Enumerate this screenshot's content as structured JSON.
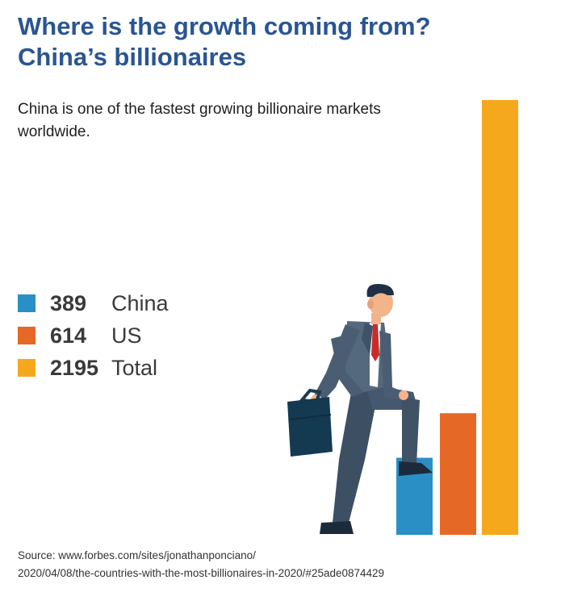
{
  "header": {
    "title_line1": "Where is the growth coming from?",
    "title_line2": "China’s billionaires"
  },
  "subtitle": "China is one of the fastest growing billionaire markets worldwide.",
  "source": {
    "line1": "Source: www.forbes.com/sites/jonathanponciano/",
    "line2": "2020/04/08/the-countries-with-the-most-billionaires-in-2020/#25ade0874429"
  },
  "chart_data": {
    "type": "bar",
    "categories": [
      "China",
      "US",
      "Total"
    ],
    "values": [
      389,
      614,
      2195
    ],
    "colors": [
      "#2a8fc4",
      "#e66826",
      "#f6a81c"
    ],
    "legend_position": "left",
    "grid": false,
    "axes_visible": false,
    "ylim": [
      0,
      2195
    ]
  },
  "illustration": {
    "icon": "businessman-stepping-up-icon",
    "props": [
      "briefcase-icon"
    ]
  }
}
